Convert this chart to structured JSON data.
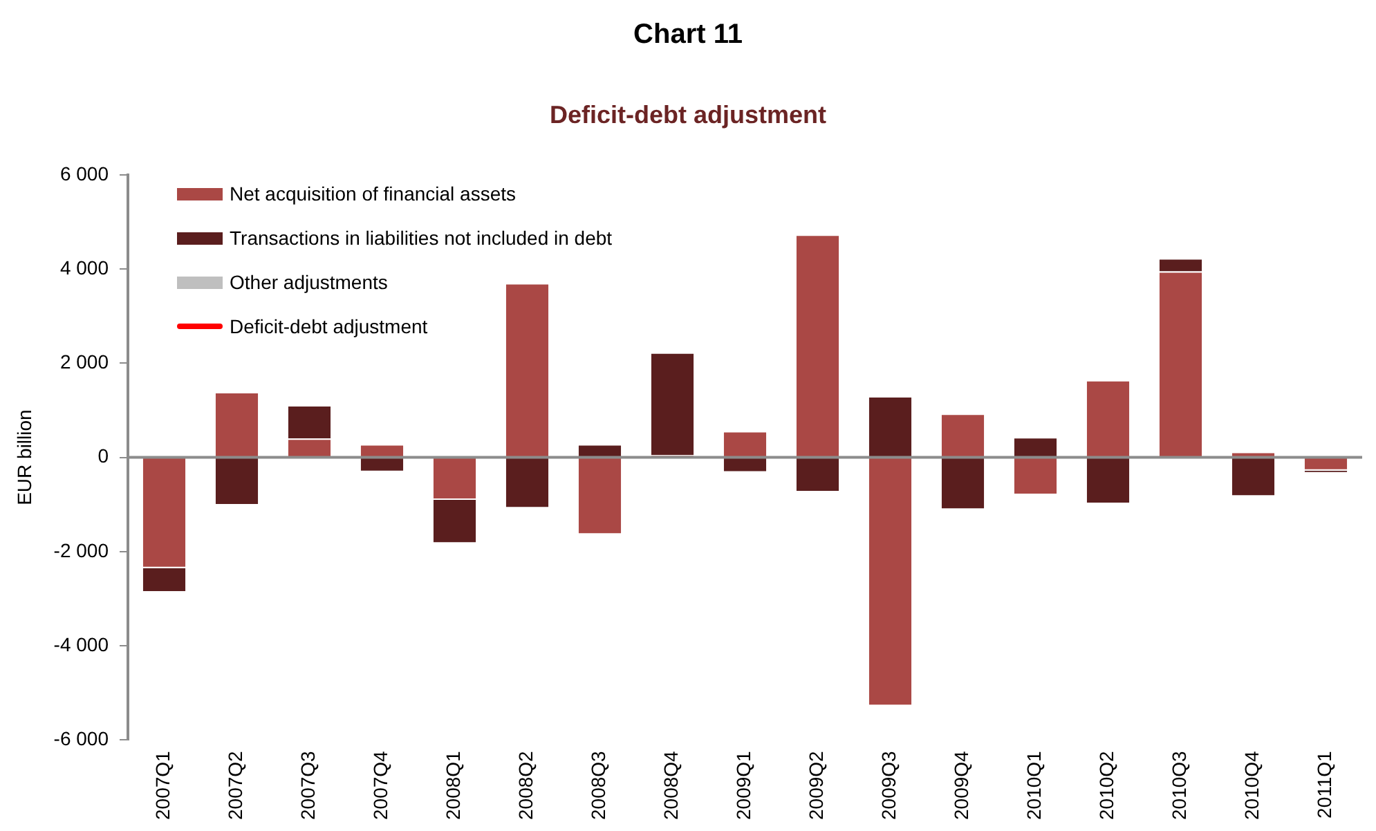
{
  "chart_data": {
    "type": "bar",
    "title": "Chart 11",
    "subtitle": "Deficit-debt adjustment",
    "ylabel": "EUR billion",
    "stacked": true,
    "legend": "top left",
    "categories": [
      "2007Q1",
      "2007Q2",
      "2007Q3",
      "2007Q4",
      "2008Q1",
      "2008Q2",
      "2008Q3",
      "2008Q4",
      "2009Q1",
      "2009Q2",
      "2009Q3",
      "2009Q4",
      "2010Q1",
      "2010Q2",
      "2010Q3",
      "2010Q4",
      "2011Q1"
    ],
    "series": [
      {
        "name": "Net acquisition of financial assets",
        "color": "#aa4845",
        "values": [
          -2350,
          1390,
          400,
          280,
          -900,
          3700,
          -1640,
          50,
          560,
          4730,
          -5280,
          930,
          -800,
          1640,
          3950,
          120,
          -280
        ]
      },
      {
        "name": "Transactions in liabilities not included in debt",
        "color": "#5a1e1e",
        "values": [
          -520,
          -1020,
          710,
          -310,
          -930,
          -1080,
          280,
          2180,
          -320,
          -740,
          1300,
          -1110,
          430,
          -990,
          280,
          -830,
          -60
        ]
      },
      {
        "name": "Other adjustments",
        "color": "#bfbfbf",
        "values": [
          null,
          null,
          null,
          null,
          null,
          null,
          null,
          null,
          null,
          null,
          null,
          null,
          null,
          null,
          null,
          null,
          null
        ]
      },
      {
        "name": "Deficit-debt adjustment",
        "type": "line",
        "color": "#ff0000",
        "values": [
          null,
          null,
          null,
          null,
          null,
          null,
          null,
          null,
          null,
          null,
          null,
          null,
          null,
          null,
          null,
          null,
          null
        ]
      }
    ],
    "ylim": [
      -6000,
      6000
    ],
    "yticks": [
      {
        "value": -6000,
        "label": "-6 000"
      },
      {
        "value": -4000,
        "label": "-4 000"
      },
      {
        "value": -2000,
        "label": "-2 000"
      },
      0,
      {
        "value": 2000,
        "label": "2 000"
      },
      {
        "value": 4000,
        "label": "4 000"
      },
      {
        "value": 6000,
        "label": "6 000"
      }
    ]
  }
}
